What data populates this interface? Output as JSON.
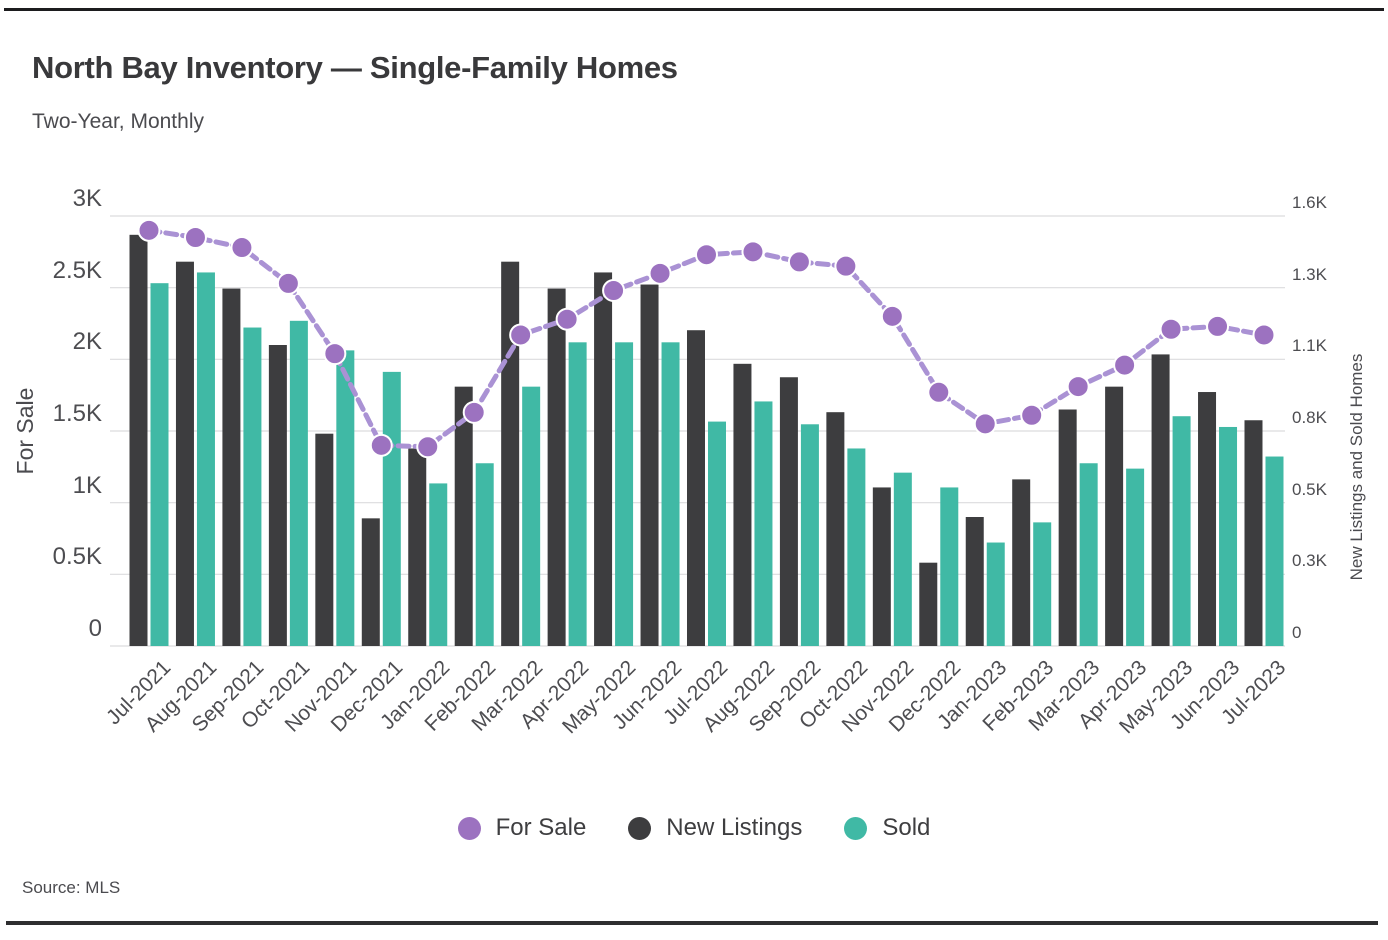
{
  "page": {
    "title": "North Bay Inventory — Single-Family Homes",
    "subtitle": "Two-Year, Monthly",
    "source": "Source: MLS"
  },
  "legend": [
    {
      "label": "For Sale",
      "color": "#9c72c0"
    },
    {
      "label": "New Listings",
      "color": "#3d3d3f"
    },
    {
      "label": "Sold",
      "color": "#40b9a5"
    }
  ],
  "chart_data": {
    "type": "bar",
    "subtype": "grouped bars with overlaid line (dual axis)",
    "title": "North Bay Inventory — Single-Family Homes",
    "subtitle": "Two-Year, Monthly",
    "categories": [
      "Jul-2021",
      "Aug-2021",
      "Sep-2021",
      "Oct-2021",
      "Nov-2021",
      "Dec-2021",
      "Jan-2022",
      "Feb-2022",
      "Mar-2022",
      "Apr-2022",
      "May-2022",
      "Jun-2022",
      "Jul-2022",
      "Aug-2022",
      "Sep-2022",
      "Oct-2022",
      "Nov-2022",
      "Dec-2022",
      "Jan-2023",
      "Feb-2023",
      "Mar-2023",
      "Apr-2023",
      "May-2023",
      "Jun-2023",
      "Jul-2023"
    ],
    "series": [
      {
        "name": "For Sale",
        "type": "line",
        "style": "dashed-with-dots",
        "axis": "left",
        "color": "#9c72c0",
        "line_color": "#aa92d4",
        "values": [
          2900,
          2850,
          2780,
          2530,
          2040,
          1400,
          1390,
          1630,
          2170,
          2280,
          2480,
          2600,
          2730,
          2750,
          2680,
          2650,
          2300,
          1770,
          1550,
          1610,
          1810,
          1960,
          2210,
          2230,
          2170
        ]
      },
      {
        "name": "New Listings",
        "type": "bar",
        "axis": "right",
        "color": "#3d3d3f",
        "values": [
          1530,
          1430,
          1330,
          1120,
          790,
          475,
          735,
          965,
          1430,
          1330,
          1390,
          1345,
          1175,
          1050,
          1000,
          870,
          590,
          310,
          480,
          620,
          880,
          965,
          1085,
          945,
          840
        ]
      },
      {
        "name": "Sold",
        "type": "bar",
        "axis": "right",
        "color": "#40b9a5",
        "values": [
          1350,
          1390,
          1185,
          1210,
          1100,
          1020,
          605,
          680,
          965,
          1130,
          1130,
          1130,
          835,
          910,
          825,
          735,
          645,
          590,
          385,
          460,
          680,
          660,
          855,
          815,
          705
        ]
      }
    ],
    "left_axis": {
      "title": "For Sale",
      "min": 0,
      "max": 3000,
      "tick_values": [
        0,
        500,
        1000,
        1500,
        2000,
        2500,
        3000
      ],
      "tick_labels": [
        "0",
        "0.5K",
        "1K",
        "1.5K",
        "2K",
        "2.5K",
        "3K"
      ]
    },
    "right_axis": {
      "title": "New Listings and Sold Homes",
      "min": 0,
      "max": 1600,
      "tick_values": [
        0,
        267,
        533,
        800,
        1067,
        1333,
        1600
      ],
      "tick_labels": [
        "0",
        "0.3K",
        "0.5K",
        "0.8K",
        "1.1K",
        "1.3K",
        "1.6K"
      ]
    },
    "grid": "horizontal",
    "legend_position": "bottom-center",
    "source": "Source: MLS"
  }
}
